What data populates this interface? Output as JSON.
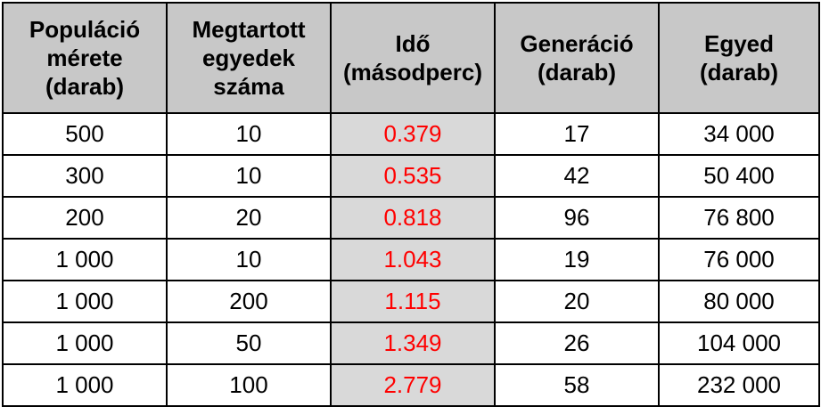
{
  "table": {
    "headers": [
      [
        "Populáció",
        "mérete",
        "(darab)"
      ],
      [
        "Megtartott",
        "egyedek",
        "száma"
      ],
      [
        "Idő",
        "(másodperc)"
      ],
      [
        "Generáció",
        "(darab)"
      ],
      [
        "Egyed",
        "(darab)"
      ]
    ],
    "rows": [
      [
        "500",
        "10",
        "0.379",
        "17",
        "34 000"
      ],
      [
        "300",
        "10",
        "0.535",
        "42",
        "50 400"
      ],
      [
        "200",
        "20",
        "0.818",
        "96",
        "76 800"
      ],
      [
        "1 000",
        "10",
        "1.043",
        "19",
        "76 000"
      ],
      [
        "1 000",
        "200",
        "1.115",
        "20",
        "80 000"
      ],
      [
        "1 000",
        "50",
        "1.349",
        "26",
        "104 000"
      ],
      [
        "1 000",
        "100",
        "2.779",
        "58",
        "232 000"
      ]
    ]
  },
  "colors": {
    "header_background": "#c8c8c8",
    "time_column_background": "#d9d9d9",
    "time_column_text": "#ff0000",
    "border": "#000000"
  }
}
